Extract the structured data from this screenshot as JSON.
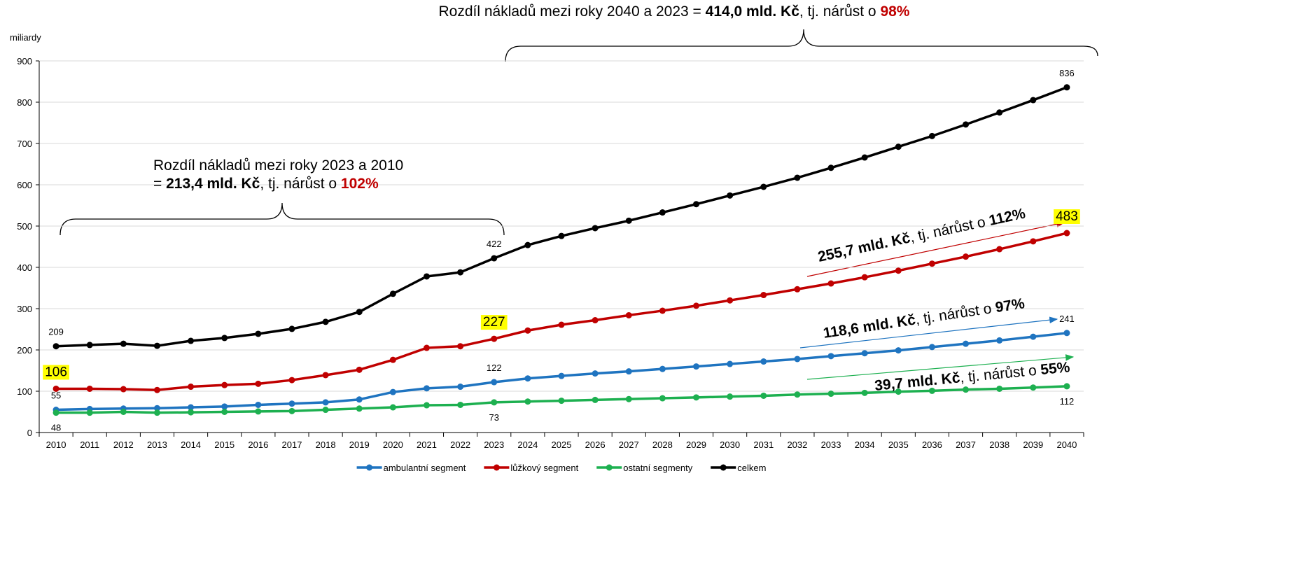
{
  "chart_data": {
    "type": "line",
    "y_axis_label": "miliardy",
    "categories": [
      "2010",
      "2011",
      "2012",
      "2013",
      "2014",
      "2015",
      "2016",
      "2017",
      "2018",
      "2019",
      "2020",
      "2021",
      "2022",
      "2023",
      "2024",
      "2025",
      "2026",
      "2027",
      "2028",
      "2029",
      "2030",
      "2031",
      "2032",
      "2033",
      "2034",
      "2035",
      "2036",
      "2037",
      "2038",
      "2039",
      "2040"
    ],
    "ylim": [
      0,
      900
    ],
    "yticks": [
      0,
      100,
      200,
      300,
      400,
      500,
      600,
      700,
      800,
      900
    ],
    "grid": true,
    "legend": "bottom",
    "label_indices": [
      0,
      13,
      30
    ],
    "series": [
      {
        "name": "ambulantní segment",
        "color": "#1f74c0",
        "label_position": "above",
        "values": [
          55,
          57,
          58,
          59,
          61,
          63,
          67,
          70,
          73,
          80,
          98,
          107,
          111,
          122,
          131,
          137,
          143,
          148,
          154,
          160,
          166,
          172,
          178,
          185,
          192,
          199,
          207,
          215,
          223,
          232,
          241
        ]
      },
      {
        "name": "lůžkový segment",
        "color": "#c00000",
        "label_position": "above",
        "highlight": "#ffff00",
        "values": [
          106,
          106,
          105,
          103,
          111,
          115,
          118,
          127,
          139,
          152,
          176,
          205,
          209,
          227,
          247,
          261,
          272,
          284,
          295,
          307,
          320,
          333,
          347,
          361,
          376,
          392,
          409,
          426,
          444,
          463,
          483
        ]
      },
      {
        "name": "ostatní segmenty",
        "color": "#1db050",
        "label_position": "below",
        "values": [
          48,
          48,
          50,
          48,
          49,
          50,
          51,
          52,
          55,
          58,
          61,
          66,
          67,
          73,
          75,
          77,
          79,
          81,
          83,
          85,
          87,
          89,
          92,
          94,
          96,
          99,
          101,
          104,
          106,
          109,
          112
        ]
      },
      {
        "name": "celkem",
        "color": "#000000",
        "label_position": "above",
        "values": [
          209,
          212,
          215,
          210,
          222,
          229,
          239,
          251,
          268,
          292,
          336,
          378,
          388,
          422,
          454,
          476,
          495,
          513,
          533,
          553,
          574,
          595,
          617,
          641,
          666,
          692,
          718,
          746,
          775,
          805,
          836
        ]
      }
    ],
    "annotations": [
      {
        "color": "#000000",
        "lines": [
          [
            {
              "text": "Rozdíl nákladů mezi roky 2040 a 2023 = "
            },
            {
              "text": "414,0 mld. Kč",
              "bold": true
            },
            {
              "text": ", tj. nárůst o "
            },
            {
              "text": "98%",
              "bold": true,
              "color": "#c00000"
            }
          ]
        ]
      },
      {
        "color": "#000000",
        "lines": [
          [
            {
              "text": "Rozdíl nákladů mezi roky 2023 a 2010"
            }
          ],
          [
            {
              "text": "= "
            },
            {
              "text": "213,4 mld. Kč",
              "bold": true
            },
            {
              "text": ", tj. nárůst o "
            },
            {
              "text": "102%",
              "bold": true,
              "color": "#c00000"
            }
          ]
        ]
      },
      {
        "color": "#c00000",
        "lines": [
          [
            {
              "text": "255,7 mld. Kč",
              "bold": true
            },
            {
              "text": ", tj. nárůst o "
            },
            {
              "text": "112%",
              "bold": true
            }
          ]
        ]
      },
      {
        "color": "#1f74c0",
        "lines": [
          [
            {
              "text": "118,6 mld. Kč",
              "bold": true
            },
            {
              "text": ", tj. nárůst o "
            },
            {
              "text": "97%",
              "bold": true
            }
          ]
        ]
      },
      {
        "color": "#1db050",
        "lines": [
          [
            {
              "text": "39,7 mld. Kč",
              "bold": true
            },
            {
              "text": ", tj. nárůst o "
            },
            {
              "text": "55%",
              "bold": true
            }
          ]
        ]
      }
    ]
  }
}
